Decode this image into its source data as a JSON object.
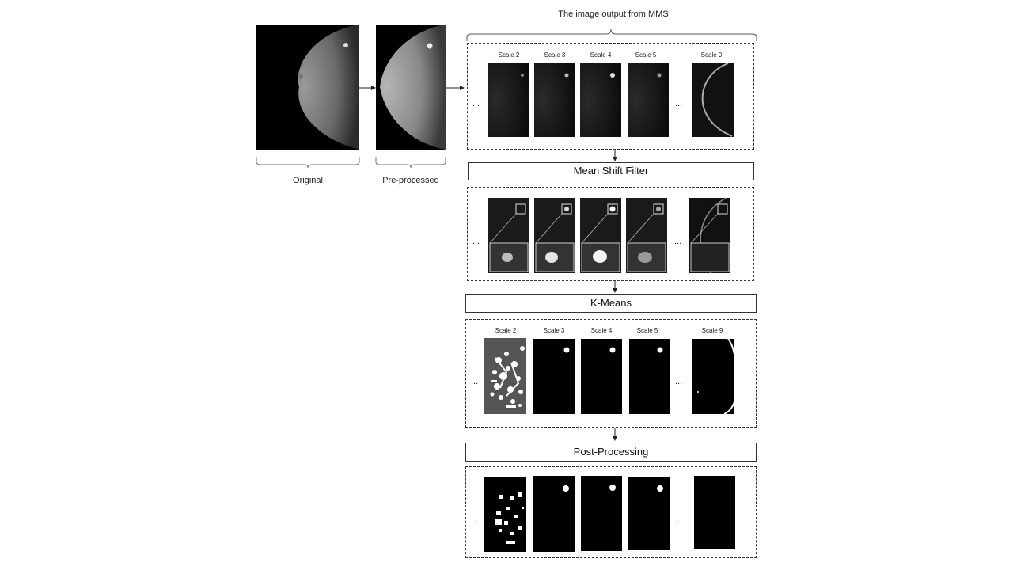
{
  "labels": {
    "top_title": "The image output from MMS",
    "original": "Original",
    "preprocessed": "Pre-processed",
    "ellipsis": "..."
  },
  "scales": {
    "row1": [
      "Scale 2",
      "Scale 3",
      "Scale 4",
      "Scale 5",
      "Scale 9"
    ],
    "row3": [
      "Scale 2",
      "Scale 3",
      "Scale 4",
      "Scale 5",
      "Scale 9"
    ]
  },
  "steps": {
    "mean_shift": "Mean Shift Filter",
    "kmeans": "K-Means",
    "post": "Post-Processing"
  },
  "colors": {
    "stroke": "#333333",
    "image_bg": "#000000",
    "kmeans_gray": "#555555"
  }
}
